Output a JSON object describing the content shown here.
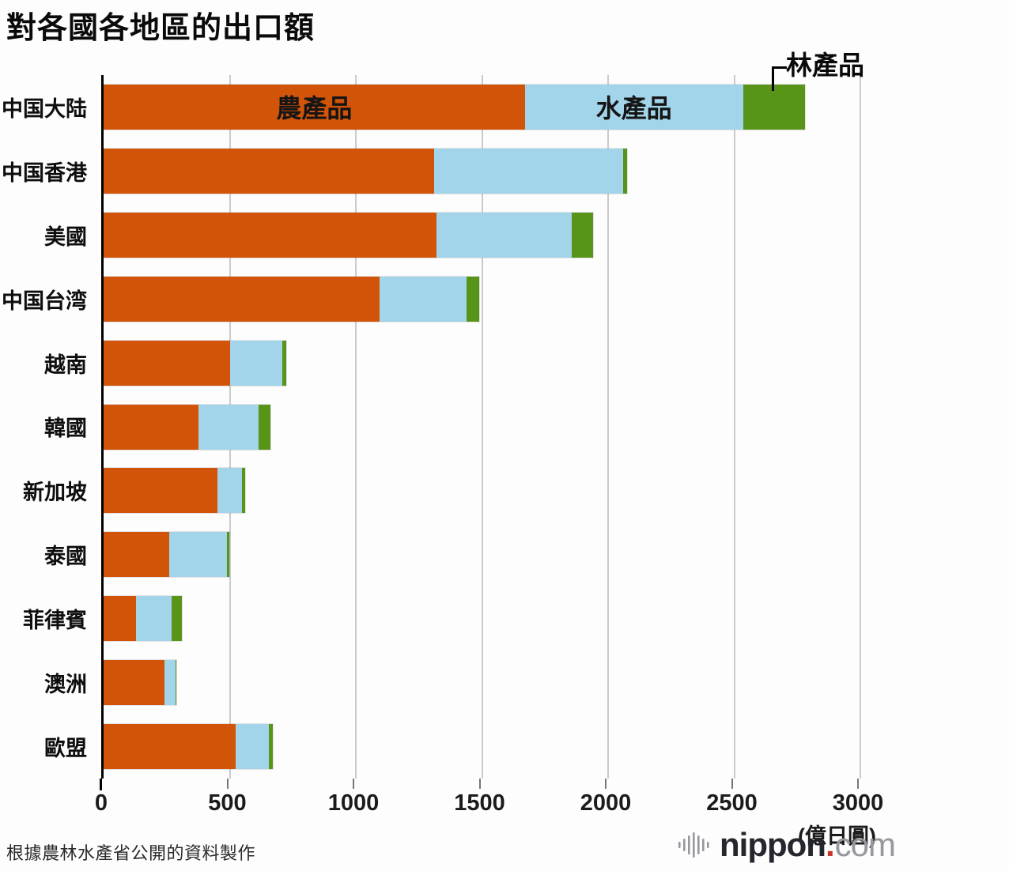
{
  "title": "對各國各地區的出口額",
  "legend": {
    "agri": "農產品",
    "fish": "水產品",
    "forest": "林產品"
  },
  "axis": {
    "ticks": [
      0,
      500,
      1000,
      1500,
      2000,
      2500,
      3000
    ],
    "max": 3000,
    "unit_label": "(億日圓)"
  },
  "colors": {
    "agri": "#d15409",
    "fish": "#a2d5ea",
    "forest": "#589418",
    "gridline": "#cbcbcb",
    "axis": "#000000",
    "logo_dot": "#c8372d"
  },
  "footer": {
    "source": "根據農林水產省公開的資料製作",
    "logo_nippon": "nippon",
    "logo_dot": ".",
    "logo_com": "com",
    "logo_icon": "soundwave-icon"
  },
  "chart_data": {
    "type": "bar",
    "orientation": "horizontal",
    "stacked": true,
    "title": "對各國各地區的出口額",
    "xlabel": "(億日圓)",
    "xlim": [
      0,
      3000
    ],
    "grid": true,
    "categories": [
      "中国大陆",
      "中国香港",
      "美國",
      "中国台湾",
      "越南",
      "韓國",
      "新加坡",
      "泰國",
      "菲律賓",
      "澳洲",
      "歐盟"
    ],
    "series": [
      {
        "name": "農產品",
        "color": "#d15409",
        "values": [
          1670,
          1310,
          1320,
          1095,
          500,
          375,
          450,
          260,
          130,
          240,
          525
        ]
      },
      {
        "name": "水產品",
        "color": "#a2d5ea",
        "values": [
          865,
          750,
          535,
          345,
          210,
          240,
          100,
          230,
          140,
          45,
          130
        ]
      },
      {
        "name": "林產品",
        "color": "#589418",
        "values": [
          245,
          15,
          85,
          50,
          15,
          45,
          10,
          10,
          40,
          5,
          15
        ]
      }
    ],
    "totals": [
      2780,
      2075,
      1940,
      1490,
      725,
      660,
      560,
      500,
      310,
      290,
      670
    ],
    "annotations": [
      "農產品 and 水產品 labels shown inside first bar; 林產品 labeled with connector to green segment of first bar"
    ]
  }
}
